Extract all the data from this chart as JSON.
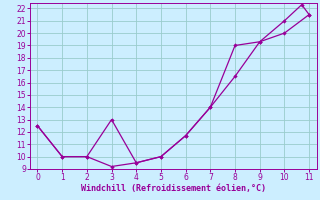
{
  "xlabel": "Windchill (Refroidissement éolien,°C)",
  "xlim": [
    -0.3,
    11.3
  ],
  "ylim": [
    9,
    22.4
  ],
  "xticks": [
    0,
    1,
    2,
    3,
    4,
    5,
    6,
    7,
    8,
    9,
    10,
    11
  ],
  "yticks": [
    9,
    10,
    11,
    12,
    13,
    14,
    15,
    16,
    17,
    18,
    19,
    20,
    21,
    22
  ],
  "bg_color": "#cceeff",
  "line_color": "#990099",
  "grid_color": "#99cccc",
  "line1_x": [
    0,
    1,
    2,
    3,
    4,
    5,
    6,
    7,
    8,
    9,
    10,
    11
  ],
  "line1_y": [
    12.5,
    10.0,
    10.0,
    9.2,
    9.5,
    10.0,
    11.7,
    14.0,
    16.5,
    19.3,
    20.0,
    21.5
  ],
  "line2_x": [
    0,
    1,
    2,
    3,
    4,
    5,
    6,
    7,
    8,
    9,
    10,
    10.7,
    11
  ],
  "line2_y": [
    12.5,
    10.0,
    10.0,
    13.0,
    9.5,
    10.0,
    11.7,
    14.0,
    19.0,
    19.3,
    21.0,
    22.3,
    21.5
  ]
}
